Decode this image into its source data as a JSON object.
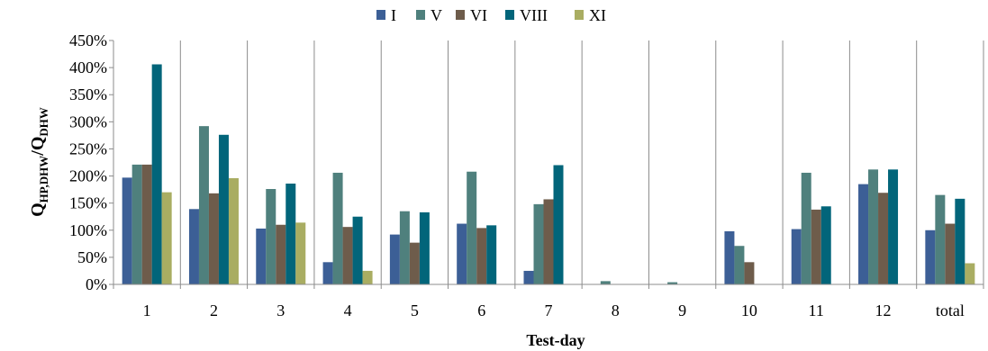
{
  "chart_data": {
    "type": "bar",
    "categories": [
      "1",
      "2",
      "3",
      "4",
      "5",
      "6",
      "7",
      "8",
      "9",
      "10",
      "11",
      "12",
      "total"
    ],
    "series": [
      {
        "name": "I",
        "color": "#3c5f96",
        "values": [
          1.97,
          1.39,
          1.03,
          0.41,
          0.92,
          1.12,
          0.25,
          0.0,
          0.0,
          0.98,
          1.02,
          1.85,
          1.0
        ]
      },
      {
        "name": "V",
        "color": "#4f807d",
        "values": [
          2.21,
          2.92,
          1.76,
          2.06,
          1.35,
          2.08,
          1.48,
          0.06,
          0.04,
          0.71,
          2.06,
          2.12,
          1.65
        ]
      },
      {
        "name": "VI",
        "color": "#6e5c4b",
        "values": [
          2.21,
          1.68,
          1.1,
          1.06,
          0.77,
          1.04,
          1.57,
          0.0,
          0.0,
          0.41,
          1.38,
          1.69,
          1.12
        ]
      },
      {
        "name": "VIII",
        "color": "#02657a",
        "values": [
          4.06,
          2.76,
          1.86,
          1.25,
          1.33,
          1.09,
          2.2,
          0.0,
          0.0,
          0.0,
          1.44,
          2.12,
          1.58
        ]
      },
      {
        "name": "XI",
        "color": "#a9ad62",
        "values": [
          1.7,
          1.96,
          1.14,
          0.25,
          0.0,
          0.0,
          0.0,
          0.0,
          0.0,
          0.0,
          0.0,
          0.0,
          0.39
        ]
      }
    ],
    "yticks": [
      "0%",
      "50%",
      "100%",
      "150%",
      "200%",
      "250%",
      "300%",
      "350%",
      "400%",
      "450%"
    ],
    "ylim": [
      0,
      4.5
    ],
    "ystep": 0.5,
    "xlabel": "Test-day",
    "ylabel": {
      "main": "Q",
      "sub1": "HP,DHW",
      "sep": "/Q",
      "sub2": "DHW"
    },
    "grid": "vertical-category-dividers",
    "legend_position": "top"
  }
}
